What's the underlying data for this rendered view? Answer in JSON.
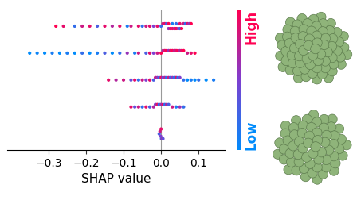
{
  "chart_data": {
    "type": "beeswarm",
    "x_label": "SHAP value",
    "xlim": [
      -0.41,
      0.17
    ],
    "xticks": [
      {
        "value": -0.3,
        "label": "−0.3"
      },
      {
        "value": -0.2,
        "label": "−0.2"
      },
      {
        "value": -0.1,
        "label": "−0.1"
      },
      0.0,
      0.1
    ],
    "vline": 0.0,
    "tick_labels": "x",
    "colorbar_range": [
      0,
      1
    ],
    "colorbar_labels": {
      "high": "High",
      "low": "Low"
    },
    "series": [
      {
        "values": [
          -0.28,
          -0.26,
          -0.23,
          -0.21,
          -0.19,
          -0.17,
          -0.15,
          -0.13,
          -0.11,
          -0.09,
          -0.08,
          -0.06,
          -0.05,
          -0.04,
          -0.03,
          -0.02,
          -0.01,
          0.0,
          0.005,
          0.01,
          0.015,
          0.02,
          0.02,
          0.025,
          0.03,
          0.03,
          0.035,
          0.04,
          0.04,
          0.045,
          0.05,
          0.05,
          0.055,
          0.06,
          0.065,
          0.07,
          0.075,
          0.08
        ],
        "feature_values": [
          1.0,
          0.9,
          0.2,
          0.8,
          0.9,
          0.3,
          0.9,
          0.7,
          0.9,
          0.1,
          0.8,
          0.9,
          0.2,
          0.8,
          0.9,
          0.5,
          0.9,
          0.2,
          0.8,
          0.9,
          0.3,
          1.0,
          0.6,
          0.9,
          0.1,
          0.9,
          0.8,
          0.2,
          1.0,
          0.7,
          0.9,
          0.3,
          1.0,
          0.8,
          0.2,
          0.9,
          0.6,
          1.0
        ]
      },
      {
        "values": [
          -0.35,
          -0.33,
          -0.31,
          -0.29,
          -0.27,
          -0.25,
          -0.23,
          -0.21,
          -0.19,
          -0.17,
          -0.15,
          -0.13,
          -0.11,
          -0.09,
          -0.07,
          -0.06,
          -0.04,
          -0.03,
          -0.02,
          -0.01,
          0.0,
          0.005,
          0.01,
          0.015,
          0.02,
          0.025,
          0.03,
          0.035,
          0.04,
          0.045,
          0.05,
          0.055,
          0.06,
          0.07,
          0.08,
          0.09
        ],
        "feature_values": [
          0.0,
          0.05,
          0.0,
          0.1,
          0.0,
          0.1,
          0.0,
          0.2,
          0.0,
          0.1,
          0.3,
          0.0,
          0.2,
          0.6,
          0.1,
          0.8,
          0.3,
          0.9,
          0.5,
          0.8,
          1.0,
          0.7,
          0.9,
          1.0,
          0.6,
          0.9,
          1.0,
          0.8,
          0.9,
          1.0,
          0.7,
          0.9,
          1.0,
          0.8,
          0.9,
          1.0
        ]
      },
      {
        "values": [
          -0.14,
          -0.12,
          -0.1,
          -0.08,
          -0.07,
          -0.06,
          -0.05,
          -0.04,
          -0.03,
          -0.02,
          -0.015,
          -0.01,
          -0.005,
          0.0,
          0.005,
          0.01,
          0.015,
          0.02,
          0.025,
          0.03,
          0.035,
          0.04,
          0.045,
          0.05,
          0.06,
          0.07,
          0.08,
          0.09,
          0.1,
          0.12,
          0.14
        ],
        "feature_values": [
          0.9,
          0.7,
          0.8,
          0.4,
          0.9,
          0.2,
          0.8,
          0.5,
          0.9,
          0.3,
          0.8,
          0.6,
          0.2,
          0.9,
          0.4,
          0.7,
          0.1,
          0.8,
          0.3,
          0.6,
          0.2,
          0.9,
          0.1,
          0.5,
          0.2,
          0.0,
          0.1,
          0.0,
          0.2,
          0.0,
          0.1
        ]
      },
      {
        "values": [
          -0.08,
          -0.07,
          -0.06,
          -0.05,
          -0.04,
          -0.03,
          -0.02,
          -0.015,
          -0.01,
          -0.005,
          0.0,
          0.005,
          0.01,
          0.015,
          0.02,
          0.03,
          0.04,
          0.05,
          0.06
        ],
        "feature_values": [
          0.9,
          0.4,
          0.8,
          0.2,
          0.9,
          0.3,
          0.7,
          0.5,
          0.9,
          0.1,
          0.6,
          0.9,
          0.2,
          0.7,
          0.3,
          0.8,
          0.1,
          0.6,
          0.2
        ]
      },
      {
        "values": [
          -0.005,
          -0.003,
          -0.001,
          0.0,
          0.001,
          0.003,
          0.005
        ],
        "feature_values": [
          0.3,
          0.8,
          0.5,
          0.9,
          0.2,
          0.7,
          0.4
        ]
      }
    ]
  }
}
